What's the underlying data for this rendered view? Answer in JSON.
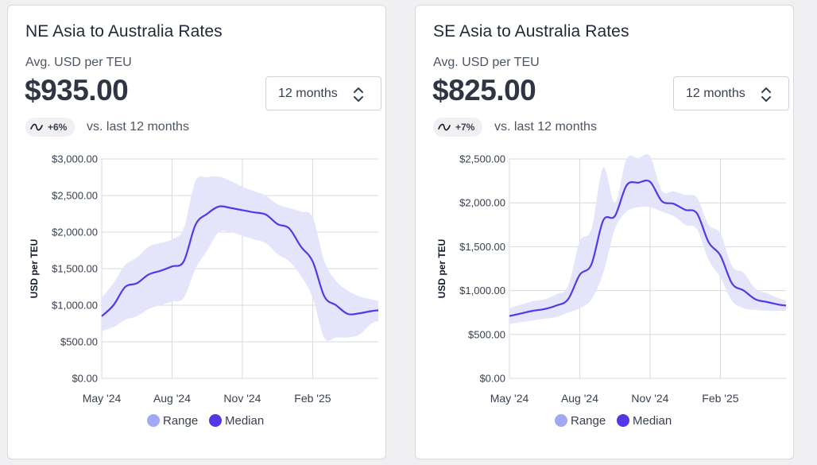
{
  "cards": [
    {
      "title": "NE Asia to Australia Rates",
      "unit": "Avg. USD per TEU",
      "value": "$935.00",
      "period": "12 months",
      "change": "+6%",
      "vs_text": "vs. last 12 months"
    },
    {
      "title": "SE Asia to Australia Rates",
      "unit": "Avg. USD per TEU",
      "value": "$825.00",
      "period": "12 months",
      "change": "+7%",
      "vs_text": "vs. last 12 months"
    }
  ],
  "colors": {
    "median": "#5139e8",
    "range_fill": "#e4e4fb",
    "range_legend": "#a3a8f5",
    "grid": "#d9d9de"
  },
  "chart_data": [
    {
      "type": "area",
      "title": "",
      "xlabel": "",
      "ylabel": "USD per TEU",
      "ylim": [
        0,
        3000
      ],
      "ytick_values": [
        0,
        500,
        1000,
        1500,
        2000,
        2500,
        3000
      ],
      "ytick_labels": [
        "$0.00",
        "$500.00",
        "$1,000.00",
        "$1,500.00",
        "$2,000.00",
        "$2,500.00",
        "$3,000.00"
      ],
      "xlim": [
        0,
        11.8
      ],
      "xtick_values": [
        0,
        3,
        6,
        9
      ],
      "xtick_labels": [
        "May '24",
        "Aug '24",
        "Nov '24",
        "Feb '25"
      ],
      "grid": true,
      "legend": [
        "Range",
        "Median"
      ],
      "legend_position": "bottom",
      "x": [
        0,
        0.5,
        1.0,
        1.5,
        2.0,
        2.5,
        3.0,
        3.5,
        4.0,
        4.5,
        5.0,
        5.5,
        6.0,
        6.5,
        7.0,
        7.5,
        8.0,
        8.5,
        9.0,
        9.5,
        10.0,
        10.5,
        11.0,
        11.5,
        11.8
      ],
      "series": [
        {
          "name": "Median",
          "values": [
            850,
            1000,
            1250,
            1300,
            1420,
            1470,
            1530,
            1600,
            2100,
            2250,
            2350,
            2330,
            2300,
            2270,
            2240,
            2110,
            2050,
            1800,
            1600,
            1120,
            1000,
            880,
            890,
            920,
            930
          ]
        },
        {
          "name": "Range",
          "lower": [
            650,
            700,
            800,
            850,
            950,
            1000,
            1050,
            1100,
            1500,
            1750,
            2000,
            2000,
            1950,
            1900,
            1850,
            1700,
            1600,
            1400,
            1100,
            550,
            560,
            560,
            600,
            750,
            780
          ],
          "upper": [
            1100,
            1300,
            1550,
            1650,
            1800,
            1850,
            1900,
            2050,
            2700,
            2750,
            2760,
            2700,
            2620,
            2560,
            2500,
            2380,
            2330,
            2280,
            2200,
            1600,
            1330,
            1200,
            1120,
            1080,
            1060
          ]
        }
      ]
    },
    {
      "type": "area",
      "title": "",
      "xlabel": "",
      "ylabel": "USD per TEU",
      "ylim": [
        0,
        2500
      ],
      "ytick_values": [
        0,
        500,
        1000,
        1500,
        2000,
        2500
      ],
      "ytick_labels": [
        "$0.00",
        "$500.00",
        "$1,000.00",
        "$1,500.00",
        "$2,000.00",
        "$2,500.00"
      ],
      "xlim": [
        0,
        11.8
      ],
      "xtick_values": [
        0,
        3,
        6,
        9
      ],
      "xtick_labels": [
        "May '24",
        "Aug '24",
        "Nov '24",
        "Feb '25"
      ],
      "grid": true,
      "legend": [
        "Range",
        "Median"
      ],
      "legend_position": "bottom",
      "x": [
        0,
        0.5,
        1.0,
        1.5,
        2.0,
        2.5,
        3.0,
        3.5,
        4.0,
        4.5,
        5.0,
        5.5,
        6.0,
        6.5,
        7.0,
        7.5,
        8.0,
        8.5,
        9.0,
        9.5,
        10.0,
        10.5,
        11.0,
        11.5,
        11.8
      ],
      "series": [
        {
          "name": "Median",
          "values": [
            710,
            740,
            770,
            790,
            830,
            900,
            1180,
            1300,
            1800,
            1850,
            2200,
            2230,
            2240,
            2020,
            1990,
            1920,
            1880,
            1550,
            1400,
            1080,
            1000,
            900,
            870,
            840,
            830
          ]
        },
        {
          "name": "Range",
          "lower": [
            620,
            640,
            660,
            680,
            700,
            750,
            800,
            900,
            1200,
            1700,
            1900,
            1950,
            1950,
            1900,
            1850,
            1750,
            1700,
            1350,
            1150,
            880,
            800,
            780,
            770,
            770,
            770
          ]
        }
      ]
    }
  ]
}
